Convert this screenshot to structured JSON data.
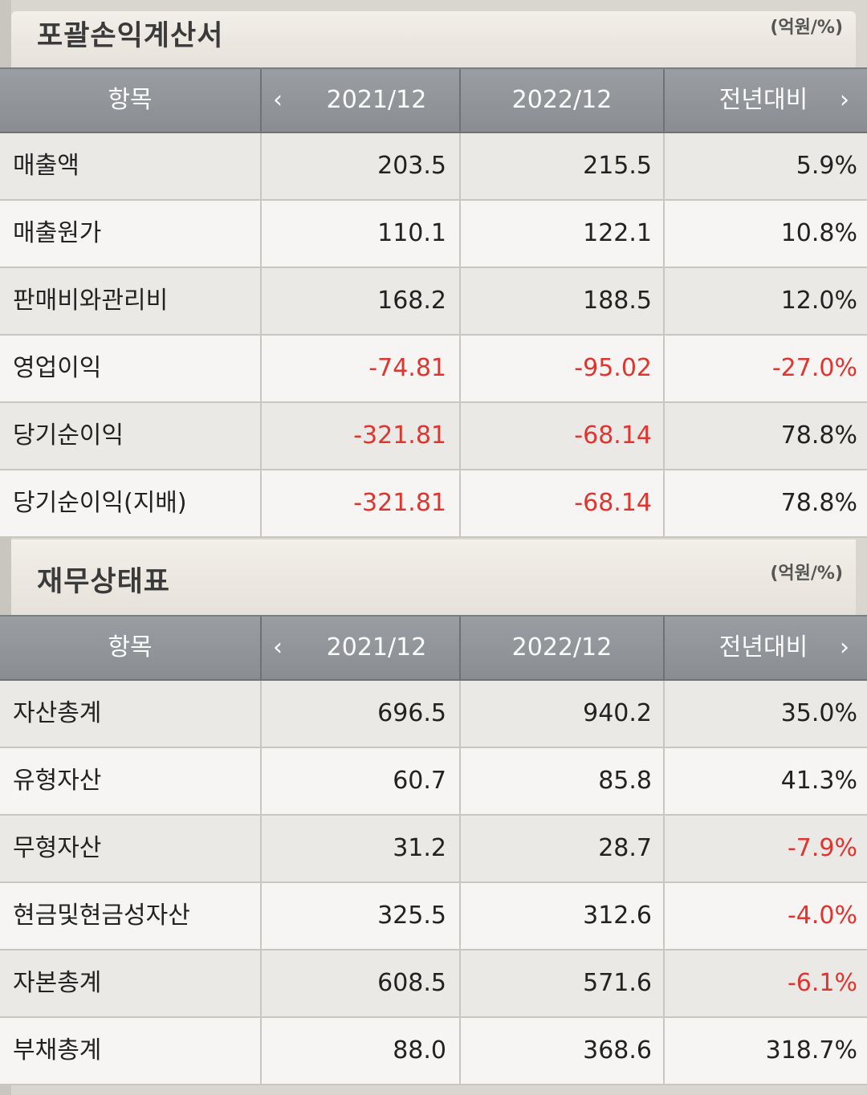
{
  "income_statement": {
    "title": "포괄손익계산서",
    "unit": "(억원/%)",
    "headers": {
      "item": "항목",
      "col1": "2021/12",
      "col2": "2022/12",
      "col3": "전년대비",
      "prev": "‹",
      "next": "›"
    },
    "rows": [
      {
        "label": "매출액",
        "v1": "203.5",
        "v2": "215.5",
        "v3": "5.9%"
      },
      {
        "label": "매출원가",
        "v1": "110.1",
        "v2": "122.1",
        "v3": "10.8%"
      },
      {
        "label": "판매비와관리비",
        "v1": "168.2",
        "v2": "188.5",
        "v3": "12.0%"
      },
      {
        "label": "영업이익",
        "v1": "-74.81",
        "v2": "-95.02",
        "v3": "-27.0%"
      },
      {
        "label": "당기순이익",
        "v1": "-321.81",
        "v2": "-68.14",
        "v3": "78.8%"
      },
      {
        "label": "당기순이익(지배)",
        "v1": "-321.81",
        "v2": "-68.14",
        "v3": "78.8%"
      }
    ]
  },
  "balance_sheet": {
    "title": "재무상태표",
    "unit": "(억원/%)",
    "headers": {
      "item": "항목",
      "col1": "2021/12",
      "col2": "2022/12",
      "col3": "전년대비",
      "prev": "‹",
      "next": "›"
    },
    "rows": [
      {
        "label": "자산총계",
        "v1": "696.5",
        "v2": "940.2",
        "v3": "35.0%"
      },
      {
        "label": "유형자산",
        "v1": "60.7",
        "v2": "85.8",
        "v3": "41.3%"
      },
      {
        "label": "무형자산",
        "v1": "31.2",
        "v2": "28.7",
        "v3": "-7.9%"
      },
      {
        "label": "현금및현금성자산",
        "v1": "325.5",
        "v2": "312.6",
        "v3": "-4.0%"
      },
      {
        "label": "자본총계",
        "v1": "608.5",
        "v2": "571.6",
        "v3": "-6.1%"
      },
      {
        "label": "부채총계",
        "v1": "88.0",
        "v2": "368.6",
        "v3": "318.7%"
      }
    ]
  },
  "colors": {
    "negative": "#e0342e",
    "header_bg": "#8a8d91",
    "row_odd": "#ebe9e6",
    "row_even": "#f6f5f3"
  }
}
